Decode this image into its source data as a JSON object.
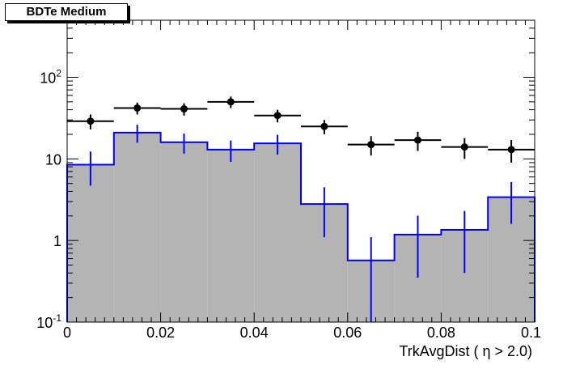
{
  "chart_data": {
    "type": "bar",
    "title": "BDTe Medium",
    "xlabel": "TrkAvgDist ( η > 2.0)",
    "ylabel": "",
    "xlim": [
      0,
      0.1
    ],
    "ylim": [
      0.1,
      500
    ],
    "y_scale": "log",
    "x_ticks": [
      {
        "v": 0,
        "label": "0"
      },
      {
        "v": 0.02,
        "label": "0.02"
      },
      {
        "v": 0.04,
        "label": "0.04"
      },
      {
        "v": 0.06,
        "label": "0.06"
      },
      {
        "v": 0.08,
        "label": "0.08"
      },
      {
        "v": 0.1,
        "label": "0.1"
      }
    ],
    "y_ticks": [
      {
        "v": 0.1,
        "base": "10",
        "exp": "-1"
      },
      {
        "v": 1,
        "base": "1",
        "exp": ""
      },
      {
        "v": 10,
        "base": "10",
        "exp": ""
      },
      {
        "v": 100,
        "base": "10",
        "exp": "2"
      }
    ],
    "bin_edges": [
      0,
      0.01,
      0.02,
      0.03,
      0.04,
      0.05,
      0.06,
      0.07,
      0.08,
      0.09,
      0.1
    ],
    "series": [
      {
        "kind": "filled-histogram",
        "fill": "#b4b4b4",
        "line": "#0000ff",
        "values": [
          8.5,
          21,
          16,
          13,
          15.5,
          2.8,
          0.57,
          1.18,
          1.35,
          3.4
        ],
        "err_low": [
          3.8,
          5.2,
          4.4,
          3.8,
          4.2,
          1.7,
          0.53,
          0.83,
          0.95,
          1.8
        ],
        "err_high": [
          3.8,
          5.2,
          4.4,
          3.8,
          4.2,
          1.7,
          0.53,
          0.83,
          0.95,
          1.8
        ]
      },
      {
        "kind": "points",
        "color": "#000000",
        "values": [
          29,
          42,
          41,
          50,
          34,
          25,
          15,
          17,
          14,
          13
        ],
        "err_low": [
          6,
          7,
          7,
          8,
          6,
          5,
          4,
          4.5,
          4,
          4
        ],
        "err_high": [
          6,
          7,
          7,
          8,
          6,
          5,
          4,
          4.5,
          4,
          4
        ]
      }
    ]
  }
}
